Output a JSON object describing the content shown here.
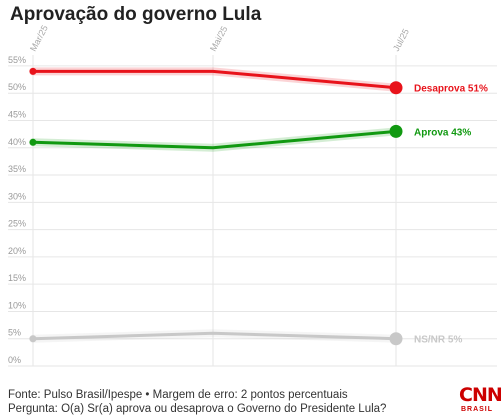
{
  "title": "Aprovação do governo Lula",
  "footer": {
    "source": "Fonte: Pulso Brasil/Ipespe • Margem de erro: 2 pontos percentuais",
    "question": "Pergunta: O(a) Sr(a) aprova ou desaprova o Governo do Presidente Lula?"
  },
  "logo": {
    "main": "CNN",
    "sub": "BRASIL"
  },
  "chart_data": {
    "type": "line",
    "title": "Aprovação do governo Lula",
    "x": [
      "Mar/25",
      "Mai/25",
      "Jul/25"
    ],
    "yticks": [
      "0%",
      "5%",
      "10%",
      "15%",
      "20%",
      "25%",
      "30%",
      "35%",
      "40%",
      "45%",
      "50%",
      "55%"
    ],
    "ylim": [
      0,
      57
    ],
    "grid": true,
    "series": [
      {
        "name": "Desaprova",
        "values": [
          54,
          54,
          51
        ],
        "color": "#e8131b",
        "end_label": "Desaprova 51%"
      },
      {
        "name": "Aprova",
        "values": [
          41,
          40,
          43
        ],
        "color": "#119911",
        "end_label": "Aprova 43%"
      },
      {
        "name": "NS/NR",
        "values": [
          5,
          6,
          5
        ],
        "color": "#c8c8c8",
        "end_label": "NS/NR 5%"
      }
    ]
  }
}
